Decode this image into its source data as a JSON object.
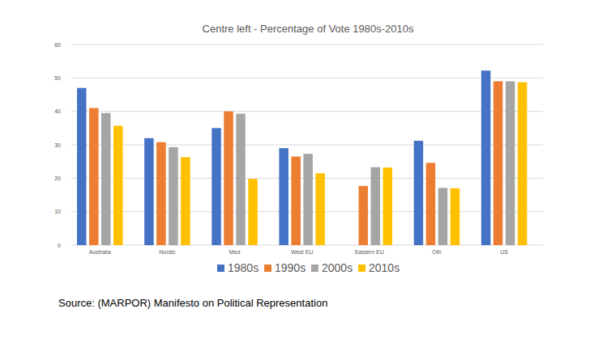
{
  "chart_data": {
    "type": "bar",
    "title": "Centre left  - Percentage of Vote 1980s-2010s",
    "source": "Source: (MARPOR) Manifesto on Political Representation",
    "categories": [
      "Australia",
      "Nordic",
      "Med",
      "West EU",
      "Eastern EU",
      "Oth",
      "US"
    ],
    "series": [
      {
        "name": "1980s",
        "color": "#4472c4",
        "values": [
          47,
          32,
          35,
          29,
          null,
          31.2,
          52.2
        ]
      },
      {
        "name": "1990s",
        "color": "#ed7d31",
        "values": [
          41,
          30.8,
          40,
          26.5,
          17.7,
          24.6,
          49
        ]
      },
      {
        "name": "2000s",
        "color": "#a5a5a5",
        "values": [
          39.5,
          29.3,
          39.3,
          27.3,
          23.3,
          17.1,
          49
        ]
      },
      {
        "name": "2010s",
        "color": "#ffc000",
        "values": [
          35.7,
          26.3,
          19.8,
          21.5,
          23.2,
          17,
          48.7
        ]
      }
    ],
    "ylim": [
      0,
      60
    ],
    "yticks": [
      0,
      10,
      20,
      30,
      40,
      50,
      60
    ],
    "grid": true,
    "legend": "bottom"
  }
}
